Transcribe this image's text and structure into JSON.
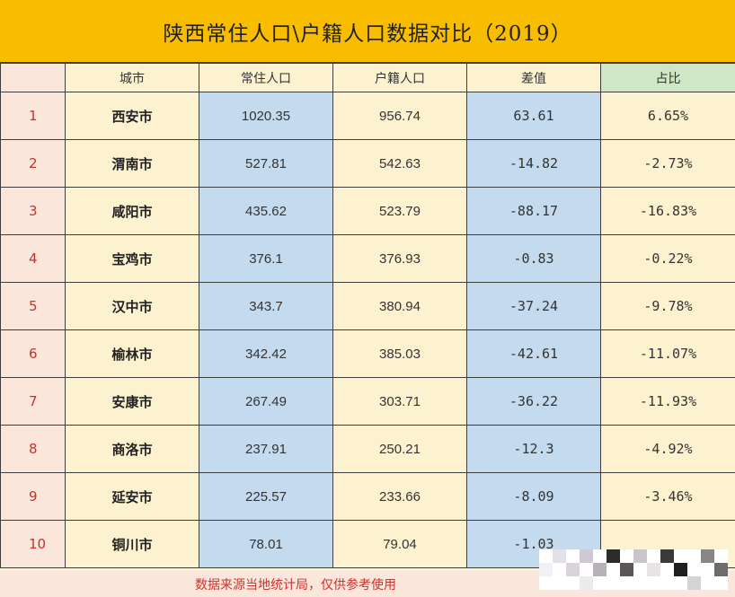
{
  "title": "陕西常住人口\\户籍人口数据对比（2019）",
  "headers": [
    "",
    "城市",
    "常住人口",
    "户籍人口",
    "差值",
    "占比"
  ],
  "rows": [
    {
      "index": "1",
      "city": "西安市",
      "resident": "1020.35",
      "household": "956.74",
      "diff": "63.61",
      "ratio": "6.65%"
    },
    {
      "index": "2",
      "city": "渭南市",
      "resident": "527.81",
      "household": "542.63",
      "diff": "-14.82",
      "ratio": "-2.73%"
    },
    {
      "index": "3",
      "city": "咸阳市",
      "resident": "435.62",
      "household": "523.79",
      "diff": "-88.17",
      "ratio": "-16.83%"
    },
    {
      "index": "4",
      "city": "宝鸡市",
      "resident": "376.1",
      "household": "376.93",
      "diff": "-0.83",
      "ratio": "-0.22%"
    },
    {
      "index": "5",
      "city": "汉中市",
      "resident": "343.7",
      "household": "380.94",
      "diff": "-37.24",
      "ratio": "-9.78%"
    },
    {
      "index": "6",
      "city": "榆林市",
      "resident": "342.42",
      "household": "385.03",
      "diff": "-42.61",
      "ratio": "-11.07%"
    },
    {
      "index": "7",
      "city": "安康市",
      "resident": "267.49",
      "household": "303.71",
      "diff": "-36.22",
      "ratio": "-11.93%"
    },
    {
      "index": "8",
      "city": "商洛市",
      "resident": "237.91",
      "household": "250.21",
      "diff": "-12.3",
      "ratio": "-4.92%"
    },
    {
      "index": "9",
      "city": "延安市",
      "resident": "225.57",
      "household": "233.66",
      "diff": "-8.09",
      "ratio": "-3.46%"
    },
    {
      "index": "10",
      "city": "铜川市",
      "resident": "78.01",
      "household": "79.04",
      "diff": "-1.03",
      "ratio": ""
    }
  ],
  "footer": "数据来源当地统计局，仅供参考使用",
  "colors": {
    "title_bg": "#f9bd00",
    "index_bg": "#fbe6db",
    "cream_bg": "#fdf2d0",
    "blue_bg": "#c4daee",
    "ratio_header_bg": "#cfe7c6",
    "accent_red": "#c8302c"
  },
  "watermark_tiles": [
    "#fff",
    "#e4e0ea",
    "#fff",
    "#cfc9d4",
    "#fff",
    "#2b2b2b",
    "#fff",
    "#c9c5c9",
    "#fff",
    "#3a3a3a",
    "#fff",
    "#fff",
    "#8a8688",
    "#fff",
    "#f3f0f4",
    "#fff",
    "#d9d4dc",
    "#fff",
    "#b7b2b9",
    "#fff",
    "#5a5556",
    "#fff",
    "#e7e3e6",
    "#fff",
    "#1f1f1f",
    "#fff",
    "#fff",
    "#6f6b6d",
    "#fff",
    "#fff",
    "#fff",
    "#eceaec",
    "#fff",
    "#fff",
    "#fff",
    "#fff",
    "#fff",
    "#fff",
    "#fff",
    "#d6d3d6",
    "#fff",
    "#fff"
  ]
}
